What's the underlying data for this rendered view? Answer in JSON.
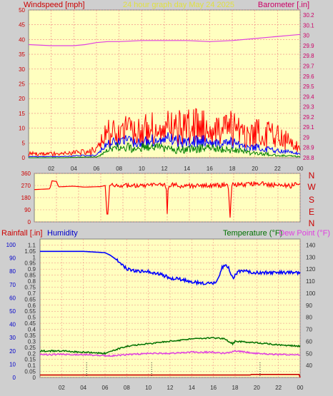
{
  "header": {
    "windspeed_label": "Windspeed [mph]",
    "title": "24 hour graph day   May 24 2025",
    "barometer_label": "Barometer [.in]"
  },
  "lower_header": {
    "rainfall_label": "Rainfall [.in]",
    "humidity_label": "Humidity",
    "temperature_label": "Temperature (°F)",
    "dewpoint_label": "Dew Point (°F)"
  },
  "colors": {
    "plot_bg": "#ffffc0",
    "frame_bg": "#cfcfcf",
    "grid": "#f08080",
    "windspeed": "#ff0000",
    "gust": "#0000ff",
    "wind_avg": "#008000",
    "barometer": "#e040e0",
    "direction": "#ff0000",
    "rainfall": "#cc0000",
    "humidity": "#0000ff",
    "temperature": "#007000",
    "dewpoint": "#e040e0",
    "title": "#e0e040",
    "left_axis_red": "#cc0000",
    "left_axis_blue": "#0000cc"
  },
  "chart_data": [
    {
      "type": "line",
      "name": "wind-barometer",
      "x_ticks": [
        "02",
        "04",
        "06",
        "08",
        "10",
        "12",
        "14",
        "16",
        "18",
        "20",
        "22",
        "00"
      ],
      "x_range_hours": [
        0,
        24
      ],
      "y_left": {
        "label": "Windspeed [mph]",
        "range": [
          0,
          50
        ],
        "ticks": [
          "0",
          "5",
          "10",
          "15",
          "20",
          "25",
          "30",
          "35",
          "40",
          "45",
          "50"
        ]
      },
      "y_right": {
        "label": "Barometer [.in]",
        "range": [
          28.8,
          30.25
        ],
        "ticks": [
          "28.8",
          "28.9",
          "29",
          "29.1",
          "29.2",
          "29.3",
          "29.4",
          "29.5",
          "29.6",
          "29.7",
          "29.8",
          "29.9",
          "30",
          "30.1",
          "30.2"
        ]
      },
      "barometer": {
        "x": [
          0,
          2,
          4,
          5,
          6,
          7,
          8,
          10,
          12,
          14,
          16,
          18,
          20,
          22,
          23,
          24
        ],
        "y": [
          29.91,
          29.9,
          29.9,
          29.91,
          29.93,
          29.94,
          29.94,
          29.95,
          29.95,
          29.95,
          29.94,
          29.95,
          29.97,
          29.99,
          30.0,
          30.01
        ]
      },
      "wind_envelope": {
        "x": [
          0,
          3,
          5,
          6,
          6.5,
          7,
          8,
          10,
          12,
          13,
          14,
          16,
          17,
          18,
          19,
          20,
          21,
          22,
          23,
          24
        ],
        "peak": [
          2,
          2,
          3,
          4,
          9,
          13,
          14,
          15,
          16,
          16,
          17,
          16,
          15,
          16,
          13,
          14,
          13,
          11,
          10,
          6
        ],
        "gust": [
          0.5,
          0.5,
          1,
          1,
          4,
          6,
          8,
          7,
          9,
          8,
          7,
          8,
          6,
          7,
          5,
          5,
          4,
          3,
          3,
          2
        ],
        "average": [
          0,
          0,
          0.3,
          0.3,
          2,
          4,
          5,
          5,
          5,
          4,
          4,
          5,
          4,
          4,
          3,
          2,
          2,
          1,
          1,
          0.5
        ]
      }
    },
    {
      "type": "line",
      "name": "wind-direction",
      "x_range_hours": [
        0,
        24
      ],
      "y_left": {
        "range": [
          0,
          360
        ],
        "ticks": [
          "0",
          "90",
          "180",
          "270",
          "360"
        ]
      },
      "y_right_ticks": [
        "N",
        "W",
        "S",
        "E",
        "N"
      ],
      "direction": {
        "x": [
          0,
          1.4,
          1.6,
          2.0,
          2.2,
          3.5,
          4.5,
          6.0,
          6.4,
          6.6,
          6.8,
          7,
          9,
          11,
          11.9,
          12,
          12.1,
          13,
          15,
          17.5,
          17.7,
          17.8,
          19,
          20,
          21,
          22,
          23,
          24
        ],
        "y": [
          240,
          245,
          305,
          300,
          260,
          265,
          258,
          262,
          270,
          5,
          270,
          275,
          265,
          270,
          275,
          60,
          275,
          270,
          265,
          275,
          5,
          280,
          275,
          290,
          280,
          270,
          265,
          285
        ]
      }
    },
    {
      "type": "line",
      "name": "rain-humidity-temperature",
      "x_range_hours": [
        0,
        24
      ],
      "y_left": {
        "labels": [
          "Rainfall [.in]",
          "Humidity"
        ],
        "range": [
          0,
          1.15
        ],
        "ticks": [
          "0",
          "0.05",
          "0.1",
          "0.15",
          "0.2",
          "0.25",
          "0.3",
          "0.35",
          "0.4",
          "0.45",
          "0.5",
          "0.55",
          "0.6",
          "0.65",
          "0.7",
          "0.75",
          "0.8",
          "0.85",
          "0.9",
          "0.95",
          "1",
          "1.05",
          "1.1"
        ]
      },
      "y_humidity_scale": {
        "range": [
          0,
          100
        ],
        "ticks": [
          "0",
          "10",
          "20",
          "30",
          "40",
          "50",
          "60",
          "70",
          "80",
          "90",
          "100"
        ]
      },
      "y_right": {
        "labels": [
          "Temperature (°F)",
          "Dew Point (°F)"
        ],
        "range": [
          30,
          145
        ],
        "ticks": [
          "40",
          "50",
          "60",
          "70",
          "80",
          "90",
          "100",
          "110",
          "120",
          "130",
          "140"
        ]
      },
      "humidity": {
        "x": [
          0,
          1,
          4,
          6,
          6.5,
          7.5,
          8,
          9,
          10,
          11,
          12,
          13,
          14,
          15,
          16,
          16.3,
          16.8,
          17.3,
          17.8,
          18.3,
          18.8,
          20,
          22,
          23,
          24
        ],
        "y": [
          95,
          95,
          95,
          94,
          92,
          86,
          82,
          80,
          80,
          78,
          75,
          74,
          72,
          71,
          71,
          72,
          83,
          84,
          75,
          80,
          80,
          79,
          79,
          79,
          79
        ]
      },
      "temperature": {
        "x": [
          0,
          2,
          4,
          6,
          7,
          8,
          10,
          12,
          14,
          16,
          17,
          17.8,
          18,
          20,
          22,
          24
        ],
        "y": [
          52,
          52,
          51,
          50,
          53,
          56,
          58,
          60,
          62,
          63,
          62,
          58,
          60,
          59,
          57,
          56
        ]
      },
      "dewpoint": {
        "x": [
          0,
          2,
          4,
          6,
          7,
          8,
          10,
          12,
          14,
          16,
          17,
          18,
          19,
          20,
          22,
          24
        ],
        "y": [
          49,
          49,
          49,
          48,
          48,
          49,
          50,
          50,
          51,
          51,
          50,
          52,
          51,
          50,
          49,
          49
        ]
      },
      "rainfall": {
        "x": [
          0,
          19.4,
          19.5,
          23.9,
          24
        ],
        "y": [
          0.02,
          0.02,
          0.025,
          0.025,
          0.0
        ]
      },
      "rain_markers_hours": [
        4.3,
        10.3,
        20.3
      ]
    }
  ]
}
